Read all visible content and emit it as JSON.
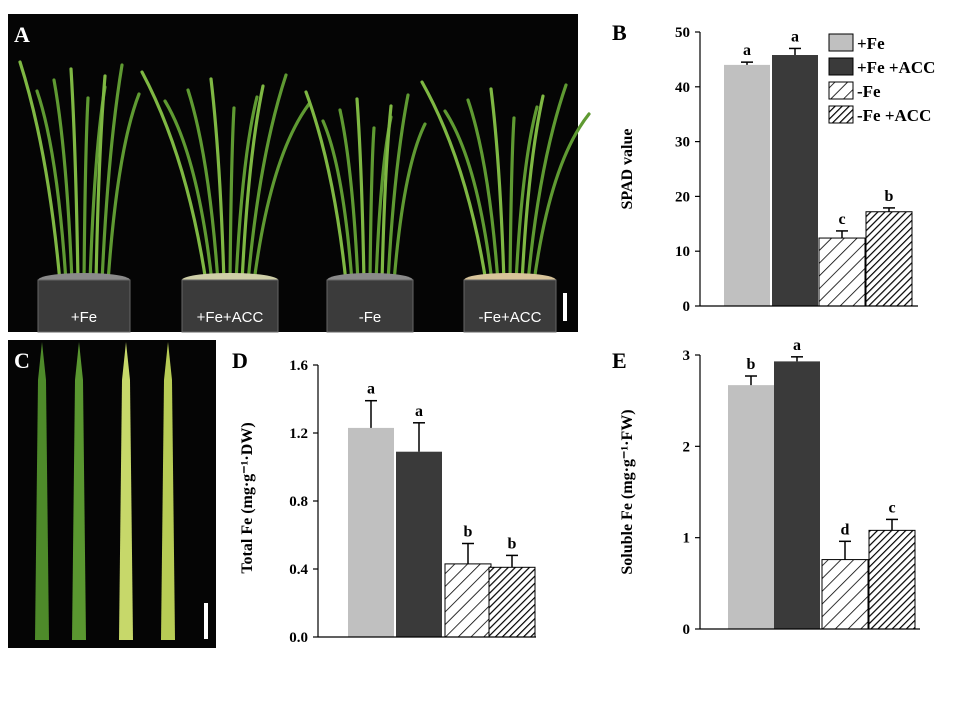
{
  "photos": {
    "A": {
      "letter": "A",
      "captions": [
        "+Fe",
        "+Fe+ACC",
        "-Fe",
        "-Fe+ACC"
      ]
    },
    "C": {
      "letter": "C"
    }
  },
  "colors": {
    "plus_fe": "#c0c0c0",
    "plus_fe_acc": "#3a3a3a",
    "hatch": "#000000",
    "photo_bg": "#050505",
    "leaf_green": "#5f9a32",
    "leaf_yellow": "#c7d86a"
  },
  "legend": [
    {
      "label": "+Fe",
      "fill": "solid-light"
    },
    {
      "label": "+Fe +ACC",
      "fill": "solid-dark"
    },
    {
      "label": "-Fe",
      "fill": "hatch-sparse"
    },
    {
      "label": "-Fe +ACC",
      "fill": "hatch-dense"
    }
  ],
  "chart_data": [
    {
      "panel": "B",
      "type": "bar",
      "categories": [
        "+Fe",
        "+Fe +ACC",
        "-Fe",
        "-Fe +ACC"
      ],
      "values": [
        44.0,
        45.8,
        12.4,
        17.2
      ],
      "errors": [
        0.5,
        1.2,
        1.3,
        0.7
      ],
      "significance": [
        "a",
        "a",
        "c",
        "b"
      ],
      "ylabel": "SPAD value",
      "ylim": [
        0,
        50
      ],
      "yticks": [
        "0",
        "10",
        "20",
        "30",
        "40",
        "50"
      ],
      "grid": false,
      "legend_position": "top-right"
    },
    {
      "panel": "D",
      "type": "bar",
      "categories": [
        "+Fe",
        "+Fe +ACC",
        "-Fe",
        "-Fe +ACC"
      ],
      "values": [
        1.23,
        1.09,
        0.43,
        0.41
      ],
      "errors": [
        0.16,
        0.17,
        0.12,
        0.07
      ],
      "significance": [
        "a",
        "a",
        "b",
        "b"
      ],
      "ylabel": "Total Fe (mg·g⁻¹·DW)",
      "ylim": [
        0,
        1.6
      ],
      "yticks": [
        "0.0",
        "0.4",
        "0.8",
        "1.2",
        "1.6"
      ],
      "grid": false
    },
    {
      "panel": "E",
      "type": "bar",
      "categories": [
        "+Fe",
        "+Fe +ACC",
        "-Fe",
        "-Fe +ACC"
      ],
      "values": [
        2.67,
        2.93,
        0.76,
        1.08
      ],
      "errors": [
        0.1,
        0.05,
        0.2,
        0.12
      ],
      "significance": [
        "b",
        "a",
        "d",
        "c"
      ],
      "ylabel": "Soluble Fe (mg·g⁻¹·FW)",
      "ylim": [
        0,
        3
      ],
      "yticks": [
        "0",
        "1",
        "2",
        "3"
      ],
      "grid": false
    }
  ]
}
